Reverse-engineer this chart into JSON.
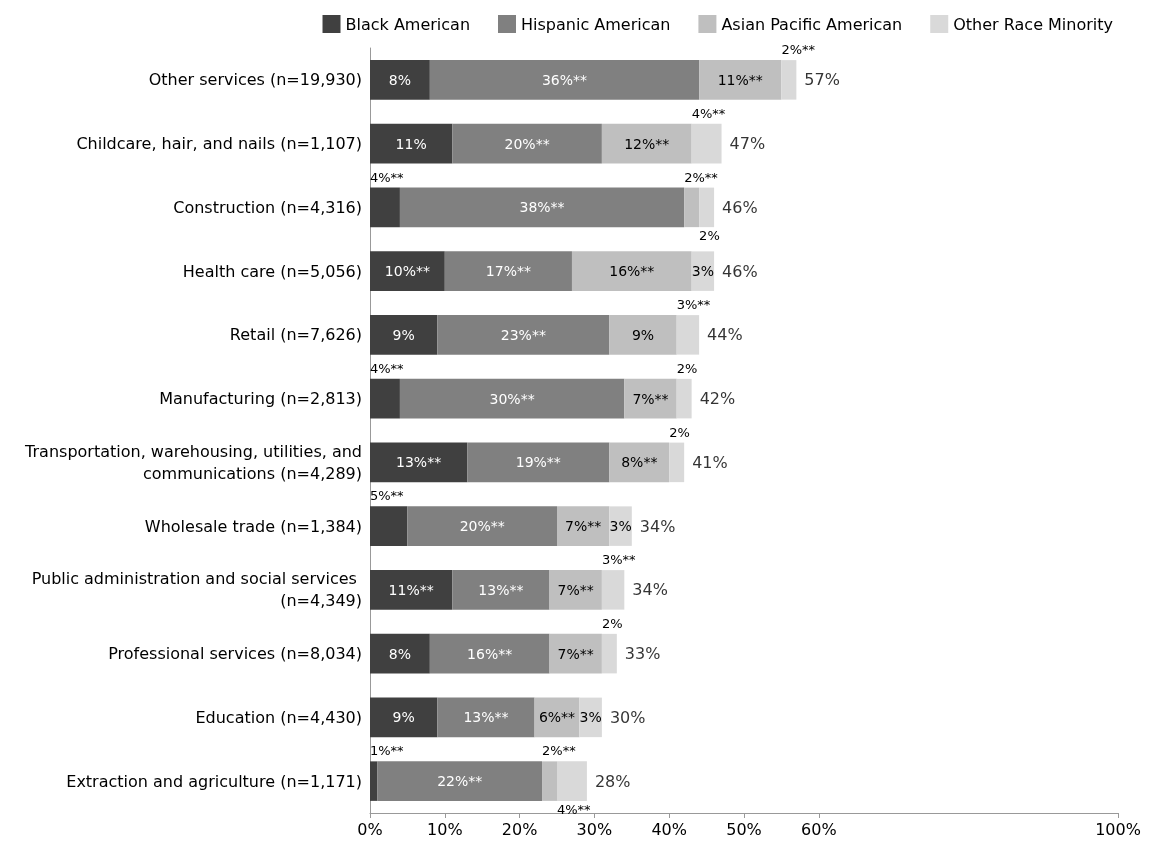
{
  "chart_data": {
    "type": "bar",
    "orientation": "horizontal",
    "stacked": true,
    "categories": [
      "Other services (n=19,930)",
      "Childcare, hair, and nails (n=1,107)",
      "Construction (n=4,316)",
      "Health care (n=5,056)",
      "Retail (n=7,626)",
      "Manufacturing (n=2,813)",
      "Transportation, warehousing, utilities, and communications (n=4,289)",
      "Wholesale trade (n=1,384)",
      "Public administration and social services (n=4,349)",
      "Professional services (n=8,034)",
      "Education (n=4,430)",
      "Extraction and agriculture (n=1,171)"
    ],
    "series": [
      {
        "name": "Black American",
        "color": "#404040",
        "values": [
          8,
          11,
          4,
          10,
          9,
          4,
          13,
          5,
          11,
          8,
          9,
          1
        ],
        "value_labels": [
          "8%",
          "11%",
          "4%**",
          "10%**",
          "9%",
          "4%**",
          "13%**",
          "5%**",
          "11%**",
          "8%",
          "9%",
          "1%**"
        ]
      },
      {
        "name": "Hispanic American",
        "color": "#808080",
        "values": [
          36,
          20,
          38,
          17,
          23,
          30,
          19,
          20,
          13,
          16,
          13,
          22
        ],
        "value_labels": [
          "36%**",
          "20%**",
          "38%**",
          "17%**",
          "23%**",
          "30%**",
          "19%**",
          "20%**",
          "13%**",
          "16%**",
          "13%**",
          "22%**"
        ]
      },
      {
        "name": "Asian Pacific American",
        "color": "#bfbfbf",
        "values": [
          11,
          12,
          2,
          16,
          9,
          7,
          8,
          7,
          7,
          7,
          6,
          2
        ],
        "value_labels": [
          "11%**",
          "12%**",
          "2%**",
          "16%**",
          "9%",
          "7%**",
          "8%**",
          "7%**",
          "7%**",
          "7%**",
          "6%**",
          "2%**"
        ]
      },
      {
        "name": "Other Race Minority",
        "color": "#d9d9d9",
        "values": [
          2,
          4,
          2,
          3,
          3,
          2,
          2,
          3,
          3,
          2,
          3,
          4
        ],
        "value_labels": [
          "2%**",
          "4%**",
          "2%",
          "3%",
          "3%**",
          "2%",
          "2%",
          "3%",
          "3%**",
          "2%",
          "3%",
          "4%**"
        ]
      }
    ],
    "totals": [
      "57%",
      "47%",
      "46%",
      "46%",
      "44%",
      "42%",
      "41%",
      "34%",
      "34%",
      "33%",
      "30%",
      "28%"
    ],
    "xlim": [
      0,
      100
    ],
    "xticks": [
      {
        "value": 0,
        "label": "0%"
      },
      {
        "value": 10,
        "label": "10%"
      },
      {
        "value": 20,
        "label": "20%"
      },
      {
        "value": 30,
        "label": "30%"
      },
      {
        "value": 40,
        "label": "40%"
      },
      {
        "value": 50,
        "label": "50%"
      },
      {
        "value": 60,
        "label": "60%"
      },
      {
        "value": 100,
        "label": "100%"
      }
    ],
    "legend": "top right",
    "grid": false
  }
}
